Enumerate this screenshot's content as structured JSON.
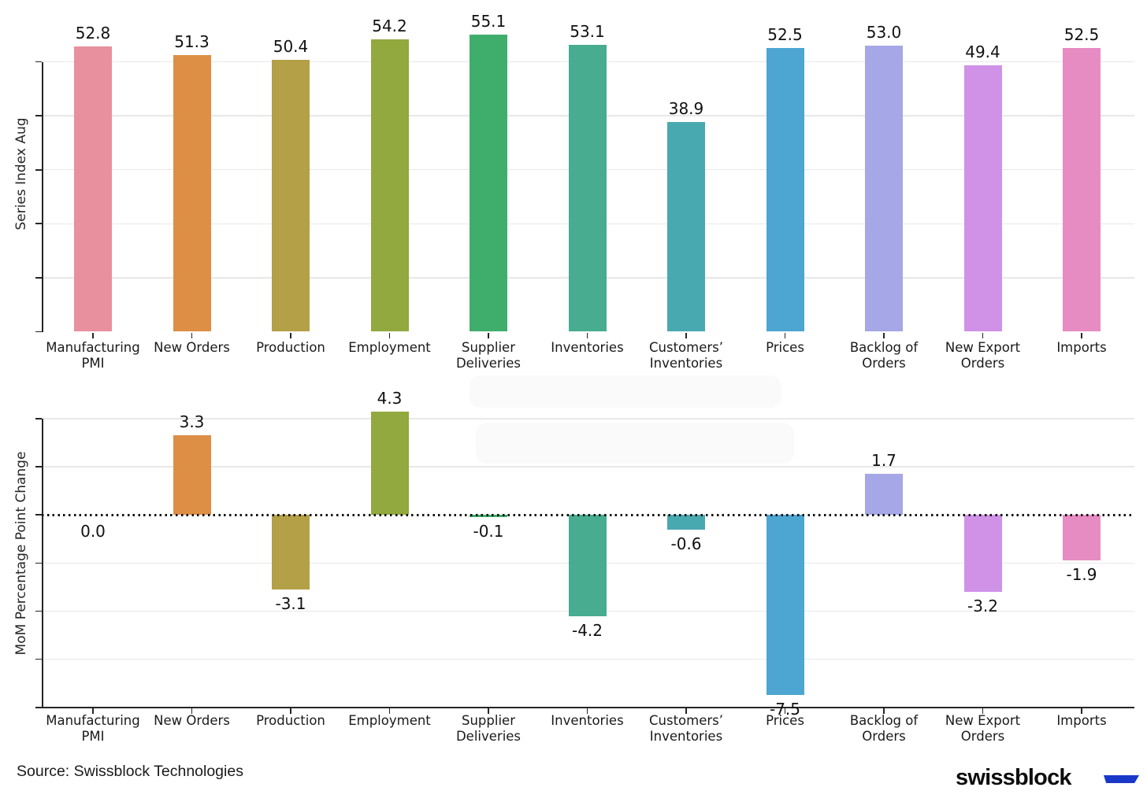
{
  "palette": [
    "#e8909d",
    "#dd8f45",
    "#b3a047",
    "#91a93e",
    "#3fae6d",
    "#47ac90",
    "#49a9b0",
    "#4da5d1",
    "#a5a7e6",
    "#cf92e6",
    "#e78cc2"
  ],
  "footer": {
    "source": "Source: Swissblock Technologies",
    "logo_text": "swissblock",
    "logo_color": "#1a38c8"
  },
  "chart_data": [
    {
      "type": "bar",
      "title": "",
      "xlabel": "",
      "ylabel": "Series Index Aug",
      "categories": [
        "Manufacturing\nPMI",
        "New Orders",
        "Production",
        "Employment",
        "Supplier\nDeliveries",
        "Inventories",
        "Customers’\nInventories",
        "Prices",
        "Backlog of\nOrders",
        "New Export\nOrders",
        "Imports"
      ],
      "values": [
        52.8,
        51.3,
        50.4,
        54.2,
        55.1,
        53.1,
        38.9,
        52.5,
        53.0,
        49.4,
        52.5
      ],
      "ylim": [
        0,
        55.5
      ],
      "yticks": [
        0,
        10,
        20,
        30,
        40,
        50
      ],
      "ytick_labels_shown": false,
      "grid": "horizontal",
      "legend": "none",
      "value_label_decimals": 1
    },
    {
      "type": "bar",
      "title": "",
      "xlabel": "",
      "ylabel": "MoM Percentage Point Change",
      "categories": [
        "Manufacturing\nPMI",
        "New Orders",
        "Production",
        "Employment",
        "Supplier\nDeliveries",
        "Inventories",
        "Customers’\nInventories",
        "Prices",
        "Backlog of\nOrders",
        "New Export\nOrders",
        "Imports"
      ],
      "values": [
        0.0,
        3.3,
        -3.1,
        4.3,
        -0.1,
        -4.2,
        -0.6,
        -7.5,
        1.7,
        -3.2,
        -1.9
      ],
      "ylim": [
        -8,
        4
      ],
      "yticks": [
        -8,
        -6,
        -4,
        -2,
        0,
        2,
        4
      ],
      "ytick_labels_shown": false,
      "grid": "horizontal",
      "legend": "none",
      "zero_line": "dotted",
      "value_label_decimals": 1
    }
  ]
}
